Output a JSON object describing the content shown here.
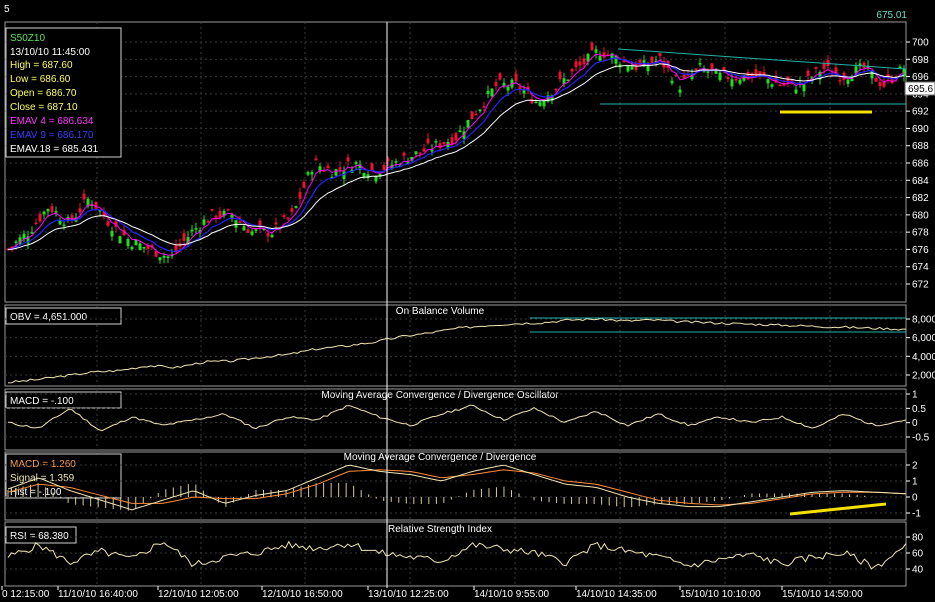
{
  "window": {
    "number": "5",
    "last_value": "675.01",
    "price_badge": "695.6"
  },
  "colors": {
    "background": "#000000",
    "panel_border": "#9a9a9a",
    "grid": "#3a3a3a",
    "up_candle": "#22dd22",
    "down_candle": "#ee1133",
    "ema4": "#ff00ff",
    "ema9": "#2222ff",
    "ema18": "#ffffff",
    "osc_line": "#f0e6b0",
    "signal_line": "#ff8c3a",
    "trend_line": "#20b2aa",
    "support_line": "#f5e000",
    "text": "#ffffff"
  },
  "price_panel": {
    "info": {
      "symbol": "S50Z10",
      "datetime": "13/10/10 11:45:00",
      "high": "High  = 687.60",
      "low": "Low  = 686.60",
      "open": "Open = 686.70",
      "close": "Close = 687.10",
      "emav4": "EMAV 4 = 686.634",
      "emav9": "EMAV 9 = 686.170",
      "emav18": "EMAV.18 = 685.431"
    },
    "y_ticks": [
      "700",
      "698",
      "696",
      "694",
      "692",
      "690",
      "688",
      "686",
      "684",
      "682",
      "680",
      "678",
      "676",
      "674",
      "672"
    ]
  },
  "obv_panel": {
    "title": "On Balance Volume",
    "label": "OBV = 4,651.000",
    "y_ticks": [
      "8,000",
      "6,000",
      "4,000",
      "2,000"
    ]
  },
  "macd_osc_panel": {
    "title": "Moving Average Convergence / Divergence Oscillator",
    "label": "MACD = -.100",
    "y_ticks": [
      "1",
      "0.5",
      "0",
      "-0.5"
    ]
  },
  "macd_panel": {
    "title": "Moving Average Convergence / Divergence",
    "macd": "MACD = 1.260",
    "signal": "Signal = 1.359",
    "hist": "Hist = -.100",
    "y_ticks": [
      "2",
      "1",
      "0",
      "-1"
    ]
  },
  "rsi_panel": {
    "title": "Relative Strength Index",
    "label": "RSI = 68.380",
    "y_ticks": [
      "80",
      "60",
      "40"
    ]
  },
  "x_labels": [
    "0 12:15:00",
    "11/10/10 16:40:00",
    "12/10/10 12:05:00",
    "12/10/10 16:50:00",
    "13/10/10 12:25:00",
    "14/10/10 9:55:00",
    "14/10/10 14:35:00",
    "15/10/10 10:10:00",
    "15/10/10 14:50:00"
  ],
  "chart_data": [
    {
      "type": "candlestick",
      "title": "S50Z10",
      "ylim": [
        672,
        701
      ],
      "close_path": [
        676,
        678,
        681,
        679,
        682,
        679,
        677,
        676,
        675,
        678,
        680,
        680,
        678,
        678,
        680,
        686,
        685,
        686,
        685,
        686,
        687,
        688,
        689,
        692,
        695,
        695,
        693,
        695,
        697,
        699,
        698,
        697,
        698,
        695,
        697,
        696,
        696,
        696,
        695,
        695,
        697,
        696,
        697,
        695,
        697
      ],
      "ema18_path": [
        675,
        677,
        679,
        679,
        679,
        678,
        677,
        676,
        677,
        678,
        679,
        679,
        678,
        679,
        683,
        685,
        686,
        686,
        687,
        688,
        690,
        692,
        694,
        695,
        696,
        697,
        697,
        697,
        697,
        697,
        697,
        697,
        696,
        697,
        696,
        696,
        696,
        696,
        696,
        696,
        696,
        696,
        696
      ]
    },
    {
      "type": "line",
      "title": "On Balance Volume",
      "ylim": [
        0,
        9000
      ],
      "values": [
        1200,
        1500,
        1900,
        2300,
        2500,
        3000,
        2800,
        3400,
        3500,
        3900,
        4200,
        4800,
        5100,
        5500,
        6100,
        6500,
        7000,
        7300,
        7500,
        7600,
        7900,
        8000,
        7800,
        7900,
        7700,
        7600,
        7500,
        7400,
        7300,
        7200,
        7100,
        7000,
        6900
      ]
    },
    {
      "type": "line",
      "title": "Moving Average Convergence / Divergence Oscillator",
      "ylim": [
        -0.8,
        1.2
      ],
      "values": [
        0.0,
        -0.2,
        0.5,
        -0.3,
        0.2,
        -0.1,
        0.1,
        0.3,
        -0.2,
        0.2,
        0.1,
        0.6,
        0.2,
        -0.1,
        0.3,
        0.6,
        0.1,
        0.5,
        0.0,
        0.4,
        -0.1,
        0.3,
        -0.1,
        0.2,
        0.0,
        0.2,
        -0.2,
        0.3,
        -0.1,
        0.1
      ]
    },
    {
      "type": "line",
      "title": "Moving Average Convergence / Divergence",
      "ylim": [
        -1.5,
        2.5
      ],
      "series": [
        {
          "name": "MACD",
          "values": [
            0.5,
            1.2,
            0.4,
            -0.2,
            -0.8,
            -0.2,
            0.4,
            -0.4,
            0.1,
            0.4,
            1.2,
            2.0,
            1.6,
            1.4,
            1.0,
            1.6,
            2.0,
            1.4,
            0.8,
            0.6,
            0.0,
            -0.4,
            -0.6,
            -0.6,
            -0.3,
            0.0,
            0.3,
            0.4,
            0.3,
            0.2
          ]
        },
        {
          "name": "Signal",
          "values": [
            0.3,
            0.8,
            0.6,
            0.1,
            -0.4,
            -0.4,
            0.0,
            -0.1,
            -0.1,
            0.2,
            0.8,
            1.6,
            1.7,
            1.6,
            1.2,
            1.4,
            1.7,
            1.5,
            1.0,
            0.8,
            0.3,
            -0.2,
            -0.4,
            -0.5,
            -0.4,
            -0.1,
            0.2,
            0.3,
            0.3,
            0.2
          ]
        }
      ]
    },
    {
      "type": "line",
      "title": "Relative Strength Index",
      "ylim": [
        30,
        90
      ],
      "values": [
        55,
        70,
        48,
        62,
        52,
        75,
        45,
        55,
        60,
        70,
        66,
        72,
        60,
        55,
        50,
        70,
        65,
        60,
        48,
        70,
        62,
        55,
        44,
        52,
        58,
        46,
        55,
        60,
        42,
        68
      ]
    }
  ]
}
